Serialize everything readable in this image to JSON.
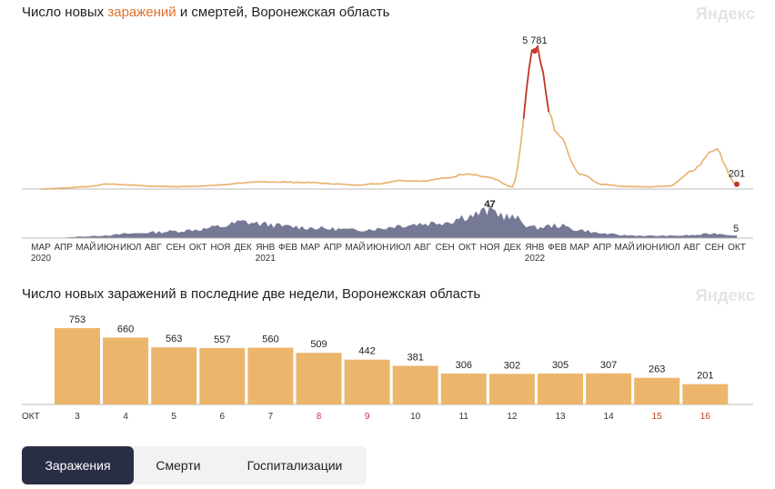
{
  "brand": "Яндекс",
  "top_chart": {
    "title_parts": [
      "Число новых ",
      "заражений",
      " и смертей, Воронежская область"
    ],
    "peak_label": "5 781",
    "end_label_cases": "201",
    "deaths_peak_label": "47",
    "end_label_deaths": "5",
    "months": [
      "МАР",
      "АПР",
      "МАЙ",
      "ИЮН",
      "ИЮЛ",
      "АВГ",
      "СЕН",
      "ОКТ",
      "НОЯ",
      "ДЕК",
      "ЯНВ",
      "ФЕВ",
      "МАР",
      "АПР",
      "МАЙ",
      "ИЮН",
      "ИЮЛ",
      "АВГ",
      "СЕН",
      "ОКТ",
      "НОЯ",
      "ДЕК",
      "ЯНВ",
      "ФЕВ",
      "МАР",
      "АПР",
      "МАЙ",
      "ИЮН",
      "ИЮЛ",
      "АВГ",
      "СЕН",
      "ОКТ"
    ],
    "years": [
      {
        "month_index": 0,
        "label": "2020"
      },
      {
        "month_index": 10,
        "label": "2021"
      },
      {
        "month_index": 22,
        "label": "2022"
      }
    ],
    "colors": {
      "cases": "#e8b06a",
      "cases_peak": "#c0392b",
      "deaths": "#5d6282",
      "deaths_dark": "#3a3f5e"
    }
  },
  "chart_data": [
    {
      "type": "line",
      "title": "Число новых заражений и смертей, Воронежская область",
      "series": [
        {
          "name": "заражения",
          "x": [
            "2020-03",
            "2020-04",
            "2020-05",
            "2020-06",
            "2020-07",
            "2020-08",
            "2020-09",
            "2020-10",
            "2020-11",
            "2020-12",
            "2021-01",
            "2021-02",
            "2021-03",
            "2021-04",
            "2021-05",
            "2021-06",
            "2021-07",
            "2021-08",
            "2021-09",
            "2021-10",
            "2021-11",
            "2021-12",
            "2022-01",
            "2022-02",
            "2022-03",
            "2022-04",
            "2022-05",
            "2022-06",
            "2022-07",
            "2022-08",
            "2022-09",
            "2022-10"
          ],
          "values": [
            0,
            40,
            100,
            210,
            170,
            120,
            100,
            120,
            170,
            260,
            300,
            290,
            270,
            220,
            170,
            220,
            360,
            340,
            450,
            650,
            480,
            90,
            5781,
            2300,
            640,
            200,
            110,
            90,
            130,
            750,
            1700,
            201
          ]
        },
        {
          "name": "смерти",
          "x": [
            "2020-03",
            "2020-04",
            "2020-05",
            "2020-06",
            "2020-07",
            "2020-08",
            "2020-09",
            "2020-10",
            "2020-11",
            "2020-12",
            "2021-01",
            "2021-02",
            "2021-03",
            "2021-04",
            "2021-05",
            "2021-06",
            "2021-07",
            "2021-08",
            "2021-09",
            "2021-10",
            "2021-11",
            "2021-12",
            "2022-01",
            "2022-02",
            "2022-03",
            "2022-04",
            "2022-05",
            "2022-06",
            "2022-07",
            "2022-08",
            "2022-09",
            "2022-10"
          ],
          "values": [
            0,
            1,
            3,
            5,
            8,
            10,
            12,
            15,
            20,
            28,
            24,
            20,
            18,
            16,
            14,
            16,
            22,
            25,
            28,
            38,
            47,
            35,
            18,
            22,
            14,
            8,
            5,
            4,
            4,
            5,
            8,
            5
          ]
        }
      ],
      "annotations": [
        "5 781",
        "201",
        "47",
        "5"
      ]
    },
    {
      "type": "bar",
      "title": "Число новых заражений в последние две недели, Воронежская область",
      "month_label": "ОКТ",
      "categories": [
        "3",
        "4",
        "5",
        "6",
        "7",
        "8",
        "9",
        "10",
        "11",
        "12",
        "13",
        "14",
        "15",
        "16"
      ],
      "weekend": [
        false,
        false,
        false,
        false,
        false,
        true,
        true,
        false,
        false,
        false,
        false,
        false,
        true,
        true
      ],
      "values": [
        753,
        660,
        563,
        557,
        560,
        509,
        442,
        381,
        306,
        302,
        305,
        307,
        263,
        201
      ],
      "value_labels": [
        "753",
        "660",
        "563",
        "557",
        "560",
        "509",
        "442",
        "381",
        "306",
        "302",
        "305",
        "307",
        "263",
        "201"
      ],
      "ylim": [
        0,
        800
      ],
      "bar_color": "#ebb66c",
      "weekend_color": "#c0392b"
    }
  ],
  "tabs": [
    {
      "label": "Заражения",
      "active": true
    },
    {
      "label": "Смерти",
      "active": false
    },
    {
      "label": "Госпитализации",
      "active": false
    }
  ]
}
